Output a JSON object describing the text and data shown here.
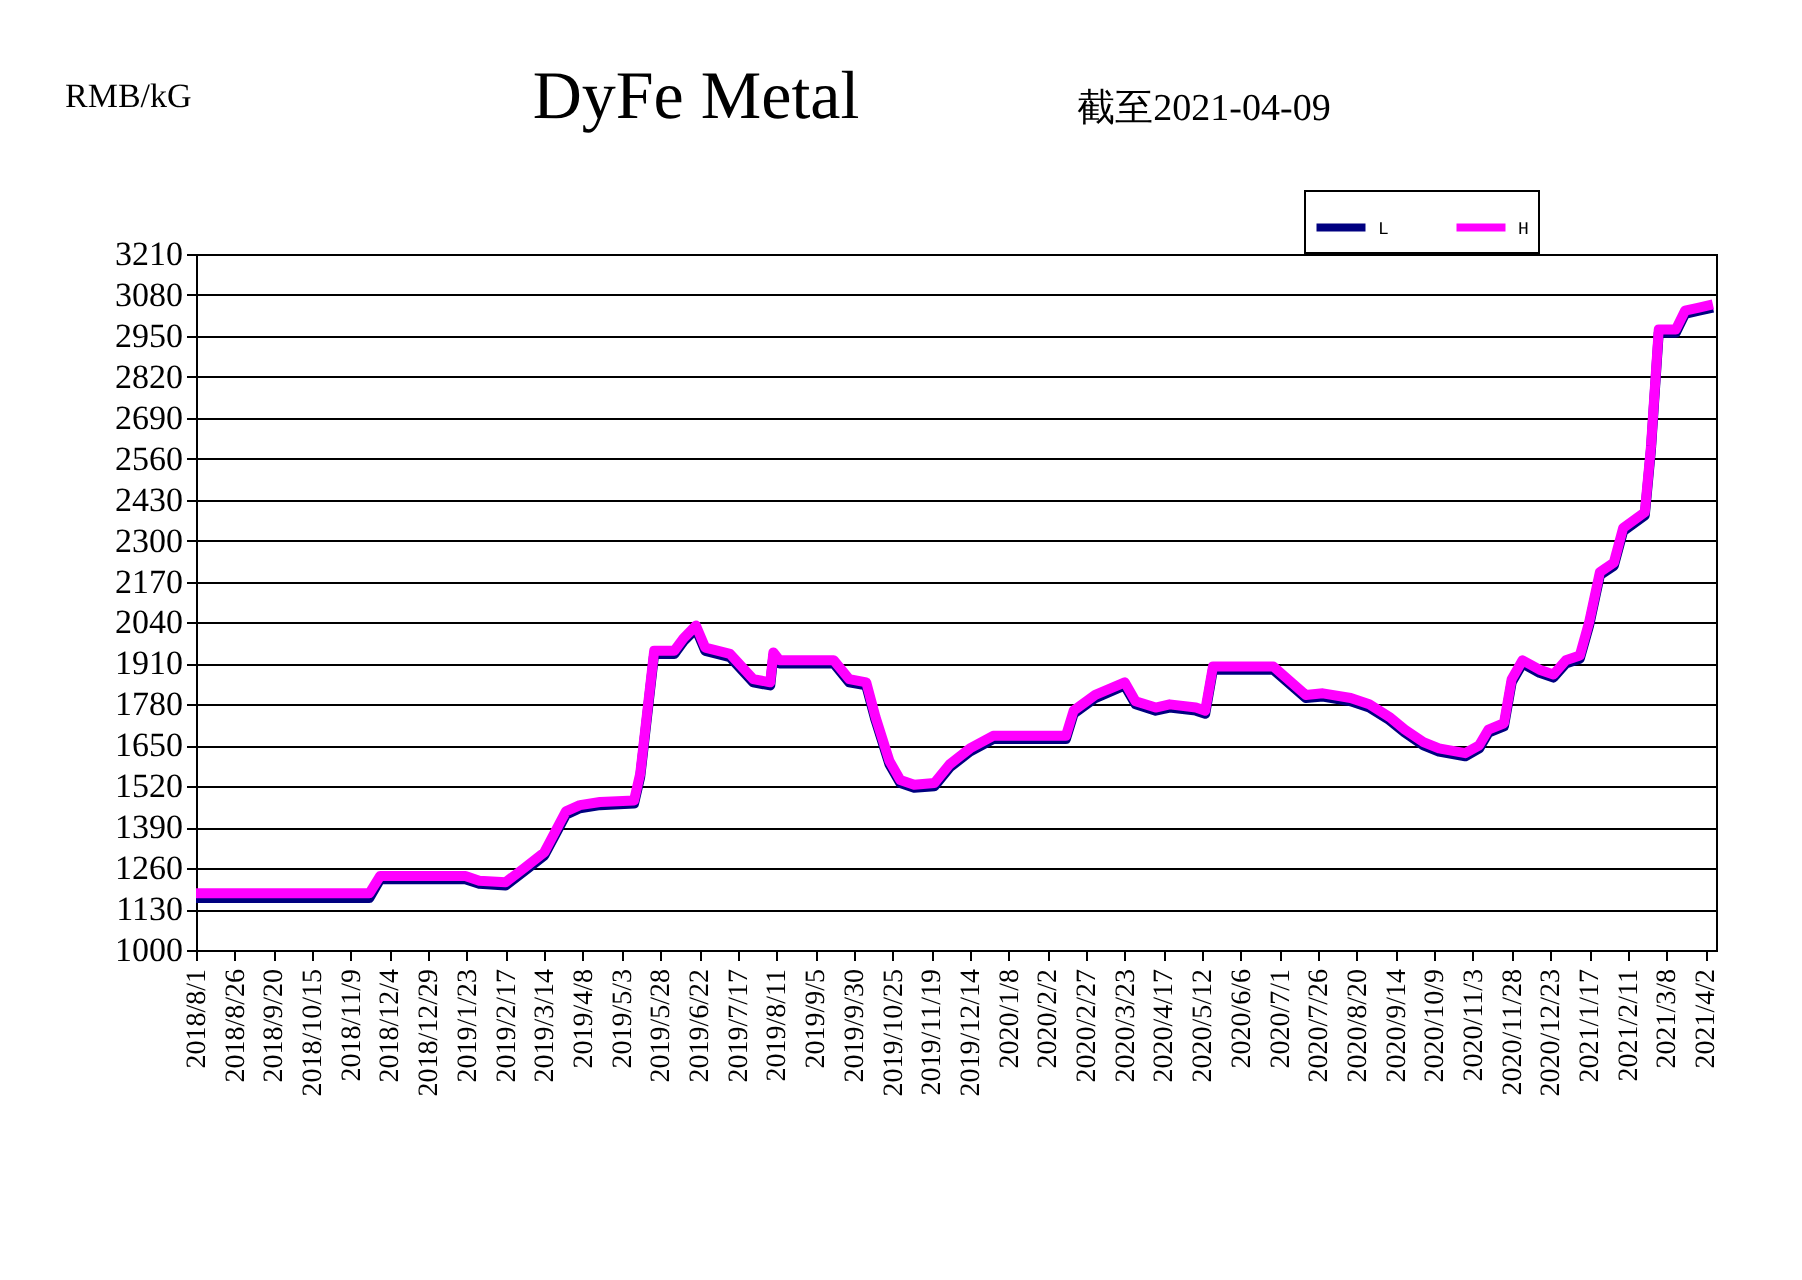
{
  "chart_data": {
    "type": "line",
    "title": "DyFe Metal",
    "subtitle": "截至2021-04-09",
    "ylabel": "RMB/kG",
    "x": [
      "2018-08-01",
      "2018-11-21",
      "2018-11-28",
      "2019-01-22",
      "2019-01-31",
      "2019-02-17",
      "2019-03-01",
      "2019-03-14",
      "2019-03-28",
      "2019-04-06",
      "2019-04-19",
      "2019-05-11",
      "2019-05-15",
      "2019-05-24",
      "2019-06-06",
      "2019-06-12",
      "2019-06-20",
      "2019-06-26",
      "2019-07-12",
      "2019-07-27",
      "2019-08-07",
      "2019-08-09",
      "2019-08-13",
      "2019-09-17",
      "2019-09-27",
      "2019-10-08",
      "2019-10-14",
      "2019-10-23",
      "2019-10-30",
      "2019-11-08",
      "2019-11-21",
      "2019-12-01",
      "2019-12-14",
      "2019-12-29",
      "2020-02-14",
      "2020-02-19",
      "2020-03-04",
      "2020-03-23",
      "2020-03-30",
      "2020-04-12",
      "2020-04-21",
      "2020-05-08",
      "2020-05-14",
      "2020-05-19",
      "2020-06-27",
      "2020-07-18",
      "2020-07-29",
      "2020-08-16",
      "2020-08-28",
      "2020-09-10",
      "2020-09-20",
      "2020-10-02",
      "2020-10-12",
      "2020-10-29",
      "2020-11-07",
      "2020-11-13",
      "2020-11-23",
      "2020-11-28",
      "2020-12-05",
      "2020-12-16",
      "2020-12-25",
      "2021-01-02",
      "2021-01-11",
      "2021-01-17",
      "2021-01-24",
      "2021-02-02",
      "2021-02-08",
      "2021-02-22",
      "2021-02-26",
      "2021-03-03",
      "2021-03-14",
      "2021-03-20",
      "2021-03-29",
      "2021-04-07"
    ],
    "series": [
      {
        "name": "L",
        "color": "#000080",
        "values": [
          1165,
          1165,
          1225,
          1225,
          1210,
          1205,
          1250,
          1300,
          1430,
          1450,
          1460,
          1465,
          1550,
          1940,
          1940,
          1980,
          2020,
          1950,
          1930,
          1850,
          1840,
          1935,
          1910,
          1910,
          1850,
          1840,
          1730,
          1590,
          1530,
          1515,
          1520,
          1580,
          1630,
          1670,
          1670,
          1750,
          1800,
          1840,
          1780,
          1760,
          1770,
          1760,
          1750,
          1890,
          1890,
          1800,
          1805,
          1790,
          1770,
          1730,
          1690,
          1650,
          1630,
          1615,
          1640,
          1690,
          1710,
          1850,
          1910,
          1880,
          1865,
          1910,
          1925,
          2030,
          2190,
          2220,
          2330,
          2380,
          2590,
          2960,
          2960,
          3020,
          3030,
          3040
        ]
      },
      {
        "name": "H",
        "color": "#ff00ff",
        "values": [
          1180,
          1180,
          1235,
          1235,
          1220,
          1215,
          1260,
          1310,
          1440,
          1460,
          1470,
          1475,
          1560,
          1950,
          1950,
          1990,
          2030,
          1960,
          1940,
          1860,
          1850,
          1945,
          1920,
          1920,
          1860,
          1850,
          1740,
          1600,
          1540,
          1525,
          1530,
          1590,
          1640,
          1680,
          1680,
          1760,
          1810,
          1850,
          1790,
          1770,
          1780,
          1770,
          1760,
          1900,
          1900,
          1810,
          1815,
          1800,
          1780,
          1740,
          1700,
          1660,
          1640,
          1625,
          1650,
          1700,
          1720,
          1860,
          1920,
          1890,
          1875,
          1920,
          1935,
          2040,
          2200,
          2230,
          2340,
          2390,
          2600,
          2970,
          2970,
          3030,
          3040,
          3050
        ]
      }
    ],
    "xlim": [
      "2018-08-01",
      "2021-04-09"
    ],
    "xticks": [
      {
        "value": "2018-08-01",
        "label": "2018/8/1"
      },
      {
        "value": "2018-08-26",
        "label": "2018/8/26"
      },
      {
        "value": "2018-09-20",
        "label": "2018/9/20"
      },
      {
        "value": "2018-10-15",
        "label": "2018/10/15"
      },
      {
        "value": "2018-11-09",
        "label": "2018/11/9"
      },
      {
        "value": "2018-12-04",
        "label": "2018/12/4"
      },
      {
        "value": "2018-12-29",
        "label": "2018/12/29"
      },
      {
        "value": "2019-01-23",
        "label": "2019/1/23"
      },
      {
        "value": "2019-02-17",
        "label": "2019/2/17"
      },
      {
        "value": "2019-03-14",
        "label": "2019/3/14"
      },
      {
        "value": "2019-04-08",
        "label": "2019/4/8"
      },
      {
        "value": "2019-05-03",
        "label": "2019/5/3"
      },
      {
        "value": "2019-05-28",
        "label": "2019/5/28"
      },
      {
        "value": "2019-06-22",
        "label": "2019/6/22"
      },
      {
        "value": "2019-07-17",
        "label": "2019/7/17"
      },
      {
        "value": "2019-08-11",
        "label": "2019/8/11"
      },
      {
        "value": "2019-09-05",
        "label": "2019/9/5"
      },
      {
        "value": "2019-09-30",
        "label": "2019/9/30"
      },
      {
        "value": "2019-10-25",
        "label": "2019/10/25"
      },
      {
        "value": "2019-11-19",
        "label": "2019/11/19"
      },
      {
        "value": "2019-12-14",
        "label": "2019/12/14"
      },
      {
        "value": "2020-01-08",
        "label": "2020/1/8"
      },
      {
        "value": "2020-02-02",
        "label": "2020/2/2"
      },
      {
        "value": "2020-02-27",
        "label": "2020/2/27"
      },
      {
        "value": "2020-03-23",
        "label": "2020/3/23"
      },
      {
        "value": "2020-04-17",
        "label": "2020/4/17"
      },
      {
        "value": "2020-05-12",
        "label": "2020/5/12"
      },
      {
        "value": "2020-06-06",
        "label": "2020/6/6"
      },
      {
        "value": "2020-07-01",
        "label": "2020/7/1"
      },
      {
        "value": "2020-07-26",
        "label": "2020/7/26"
      },
      {
        "value": "2020-08-20",
        "label": "2020/8/20"
      },
      {
        "value": "2020-09-14",
        "label": "2020/9/14"
      },
      {
        "value": "2020-10-09",
        "label": "2020/10/9"
      },
      {
        "value": "2020-11-03",
        "label": "2020/11/3"
      },
      {
        "value": "2020-11-28",
        "label": "2020/11/28"
      },
      {
        "value": "2020-12-23",
        "label": "2020/12/23"
      },
      {
        "value": "2021-01-17",
        "label": "2021/1/17"
      },
      {
        "value": "2021-02-11",
        "label": "2021/2/11"
      },
      {
        "value": "2021-03-08",
        "label": "2021/3/8"
      },
      {
        "value": "2021-04-02",
        "label": "2021/4/2"
      }
    ],
    "ylim": [
      1000,
      3210
    ],
    "yticks": [
      1000,
      1130,
      1260,
      1390,
      1520,
      1650,
      1780,
      1910,
      2040,
      2170,
      2300,
      2430,
      2560,
      2690,
      2820,
      2950,
      3080,
      3210
    ],
    "grid": "y",
    "legend": "top right",
    "marker": "none",
    "line_style": "solid"
  }
}
